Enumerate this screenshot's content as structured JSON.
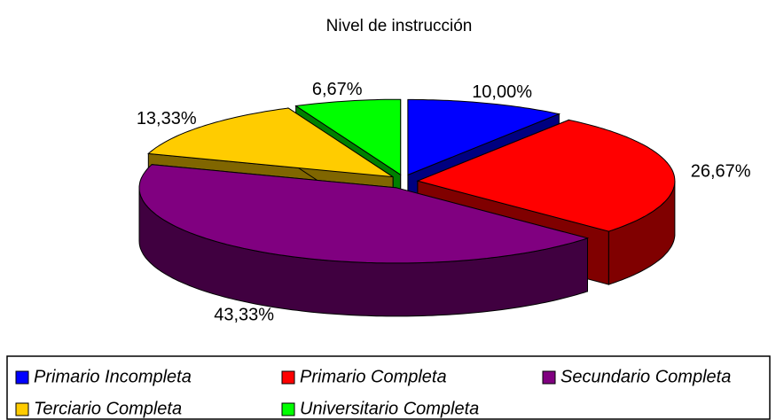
{
  "chart_data": {
    "type": "pie",
    "title": "Nivel de instrucción",
    "categories": [
      "Primario Incompleta",
      "Primario Completa",
      "Secundario Completa",
      "Terciario Completa",
      "Universitario Completa"
    ],
    "values": [
      10.0,
      26.67,
      43.33,
      13.33,
      6.67
    ],
    "value_labels": [
      "10,00%",
      "26,67%",
      "43,33%",
      "13,33%",
      "6,67%"
    ],
    "colors": [
      "#0000ff",
      "#ff0000",
      "#800080",
      "#ffcc00",
      "#00ff00"
    ],
    "legend": "bottom"
  }
}
